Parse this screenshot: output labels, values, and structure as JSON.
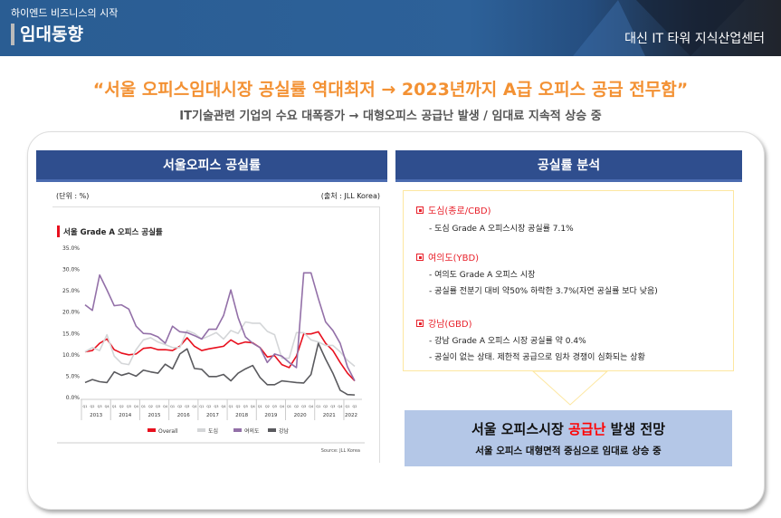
{
  "header": {
    "slogan": "하이엔드 비즈니스의 시작",
    "title": "임대동향",
    "building": "대신 IT 타워 지식산업센터"
  },
  "headline": "“서울 오피스임대시장 공실률 역대최저 → 2023년까지 A급 오피스 공급 전무함”",
  "subheadline": "IT기술관련 기업의 수요 대폭증가 → 대형오피스 공급난 발생 / 임대료 지속적 상승 중",
  "left_panel": {
    "title": "서울오피스 공실률",
    "unit": "(단위 : %)",
    "source": "(출처 : JLL Korea)"
  },
  "right_panel": {
    "title": "공실률 분석",
    "sections": [
      {
        "heading": "도심(종로/CBD)",
        "items": [
          "- 도심 Grade A 오피스시장 공실률 7.1%"
        ]
      },
      {
        "heading": "여의도(YBD)",
        "items": [
          "- 여의도 Grade A 오피스 시장",
          "- 공실률 전분기 대비 약50% 하락한 3.7%(자연 공실률 보다 낮음)"
        ]
      },
      {
        "heading": "강남(GBD)",
        "items": [
          "- 강남 Grade A 오피스 시장 공실률 약 0.4%",
          "- 공실이 없는 상태. 제한적 공급으로 임차 경쟁이 심화되는 상황"
        ]
      }
    ]
  },
  "conclusion": {
    "line1_pre": "서울 오피스시장 ",
    "line1_highlight": "공급난",
    "line1_post": " 발생 전망",
    "line2": "서울 오피스 대형면적 중심으로 임대료 상승 중"
  },
  "colors": {
    "header_blue": "#2a5d93",
    "headline_orange": "#f39133",
    "panel_navy": "#2f4e8e",
    "conclusion_bg": "#b4c7e7",
    "highlight_red": "#ff0000"
  },
  "chart_data": {
    "type": "line",
    "title": "서울 Grade A 오피스 공실률",
    "source": "Source: JLL Korea",
    "ylim": [
      0,
      35
    ],
    "yticks": [
      "35.0%",
      "30.0%",
      "25.0%",
      "20.0%",
      "15.0%",
      "10.0%",
      "5.0%",
      "0.0%"
    ],
    "years": [
      "2013",
      "2014",
      "2015",
      "2016",
      "2017",
      "2018",
      "2019",
      "2020",
      "2021",
      "2022"
    ],
    "quarters": [
      "Q1",
      "Q2",
      "Q3",
      "Q4"
    ],
    "legend_position": "bottom",
    "series": [
      {
        "name": "Overall",
        "color": "#e8101e",
        "values": [
          10.5,
          10.8,
          12.5,
          13.5,
          11,
          10.2,
          9.8,
          10,
          11.3,
          11.5,
          11,
          11,
          10.8,
          11.8,
          13.8,
          11.8,
          10.8,
          11.2,
          11.5,
          11.8,
          13.3,
          12.3,
          12.8,
          12.6,
          11.5,
          9.3,
          9.6,
          7.5,
          6.8,
          9.5,
          14.7,
          14.7,
          15.2,
          12.5,
          10.8,
          8,
          5.5,
          3.7
        ]
      },
      {
        "name": "도심",
        "color": "#d4d6d8",
        "values": [
          10.5,
          11.5,
          10.8,
          14.5,
          9.5,
          7.8,
          7.5,
          11,
          13.3,
          13.8,
          12.8,
          12.2,
          11.5,
          11.5,
          15.5,
          14.8,
          13.5,
          14.2,
          15,
          13.5,
          15.5,
          14.8,
          17.5,
          17.2,
          17.2,
          15.3,
          14.5,
          9,
          9,
          15,
          15,
          13.3,
          12.8,
          12,
          12,
          10.5,
          8.5,
          7.1
        ]
      },
      {
        "name": "여의도",
        "color": "#9370a8",
        "values": [
          21.5,
          20.2,
          28.5,
          25,
          21.3,
          21.5,
          20.5,
          16.5,
          14.8,
          14.7,
          14,
          12.5,
          16.5,
          15.2,
          15,
          14.3,
          13.5,
          15.8,
          15.8,
          19,
          25,
          18.5,
          14,
          12.5,
          11.5,
          8,
          10,
          9.5,
          8,
          6.8,
          29,
          29,
          23,
          17.5,
          15.5,
          12.5,
          7,
          3.7
        ]
      },
      {
        "name": "강남",
        "color": "#5a5a5e",
        "values": [
          3.3,
          4,
          3.5,
          3.3,
          5.8,
          5,
          5.5,
          4.8,
          6.2,
          5.8,
          5.5,
          7.6,
          6.5,
          10,
          11.2,
          6.6,
          6.4,
          4.7,
          4.7,
          5.2,
          3.7,
          5.5,
          6.5,
          7.3,
          4.5,
          2.8,
          2.8,
          3.7,
          3.5,
          3.3,
          3.2,
          5.2,
          12.5,
          8.8,
          5.5,
          1.5,
          0.5,
          0.4
        ]
      }
    ]
  }
}
